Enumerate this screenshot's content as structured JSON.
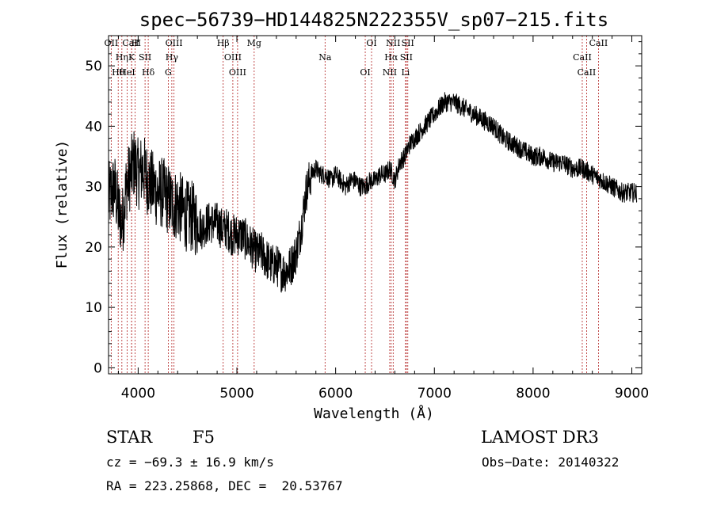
{
  "chart_data": {
    "type": "line",
    "title": "spec−56739−HD144825N222355V_sp07−215.fits",
    "xlabel": "Wavelength (Å)",
    "ylabel": "Flux (relative)",
    "xlim": [
      3700,
      9100
    ],
    "ylim": [
      -1,
      55
    ],
    "xticks": [
      4000,
      5000,
      6000,
      7000,
      8000,
      9000
    ],
    "yticks": [
      0,
      10,
      20,
      30,
      40,
      50
    ],
    "grid": false,
    "series": [
      {
        "x": [
          3700,
          3760,
          3800,
          3840,
          3880,
          3920,
          3960,
          4000,
          4050,
          4100,
          4150,
          4200,
          4250,
          4300,
          4350,
          4400,
          4450,
          4500,
          4550,
          4600,
          4650,
          4700,
          4750,
          4800,
          4850,
          4900,
          4950,
          5000,
          5050,
          5100,
          5150,
          5200,
          5250,
          5300,
          5350,
          5400,
          5450,
          5500,
          5550,
          5600,
          5650,
          5700,
          5750,
          5800,
          5850,
          5900,
          5950,
          6000,
          6050,
          6100,
          6150,
          6200,
          6250,
          6300,
          6350,
          6400,
          6450,
          6500,
          6550,
          6600,
          6650,
          6700,
          6750,
          6800,
          6850,
          6900,
          6950,
          7000,
          7050,
          7100,
          7150,
          7200,
          7300,
          7400,
          7500,
          7600,
          7700,
          7800,
          7900,
          8000,
          8100,
          8200,
          8300,
          8400,
          8500,
          8600,
          8700,
          8800,
          8900,
          9000,
          9050
        ],
        "y": [
          28,
          30,
          26,
          24,
          30,
          32,
          34,
          32,
          33,
          31,
          30,
          29,
          29,
          28,
          27,
          27,
          26,
          25,
          25,
          24,
          23,
          24,
          24,
          24,
          23,
          23,
          22,
          22,
          22,
          21,
          20,
          19,
          19,
          18,
          17,
          17,
          16,
          16,
          17,
          19,
          23,
          29,
          32,
          33,
          32,
          32,
          31,
          32,
          31,
          30,
          31,
          31,
          30,
          30,
          31,
          31,
          32,
          32,
          33,
          31,
          34,
          35,
          37,
          38,
          39,
          40,
          41,
          42,
          43,
          44,
          44,
          44,
          43,
          42,
          41,
          40,
          38,
          37,
          36,
          35,
          35,
          34,
          34,
          33,
          33,
          32,
          31,
          30,
          29,
          29,
          29
        ]
      }
    ],
    "lines": [
      {
        "label": "CaII",
        "wave": 3934
      },
      {
        "label": "K",
        "wave": 3934
      },
      {
        "label": "Hθ",
        "wave": 3798
      },
      {
        "label": "OII",
        "wave": 3727
      },
      {
        "label": "Hη",
        "wave": 3835
      },
      {
        "label": "HeI",
        "wave": 3889
      },
      {
        "label": "H",
        "wave": 3969
      },
      {
        "label": "SII",
        "wave": 4070
      },
      {
        "label": "Hδ",
        "wave": 4102
      },
      {
        "label": "OIII",
        "wave": 4363
      },
      {
        "label": "Hγ",
        "wave": 4341
      },
      {
        "label": "G",
        "wave": 4305
      },
      {
        "label": "Hβ",
        "wave": 4861
      },
      {
        "label": "OIII",
        "wave": 4959
      },
      {
        "label": "OIII",
        "wave": 5007
      },
      {
        "label": "Mg",
        "wave": 5175
      },
      {
        "label": "Na",
        "wave": 5893
      },
      {
        "label": "OI",
        "wave": 6300
      },
      {
        "label": "OI",
        "wave": 6364
      },
      {
        "label": "Hα",
        "wave": 6563
      },
      {
        "label": "NII",
        "wave": 6548
      },
      {
        "label": "NII",
        "wave": 6583
      },
      {
        "label": "SII",
        "wave": 6716
      },
      {
        "label": "Li",
        "wave": 6708
      },
      {
        "label": "SII",
        "wave": 6731
      },
      {
        "label": "CaII",
        "wave": 8498
      },
      {
        "label": "CaII",
        "wave": 8542
      },
      {
        "label": "CaII",
        "wave": 8662
      }
    ]
  },
  "info": {
    "object_type": "STAR",
    "subclass": "F5",
    "survey": "LAMOST DR3",
    "cz": "cz = −69.3 ± 16.9 km/s",
    "obs_date": "Obs−Date: 20140322",
    "coords": "RA = 223.25868, DEC =  20.53767"
  }
}
